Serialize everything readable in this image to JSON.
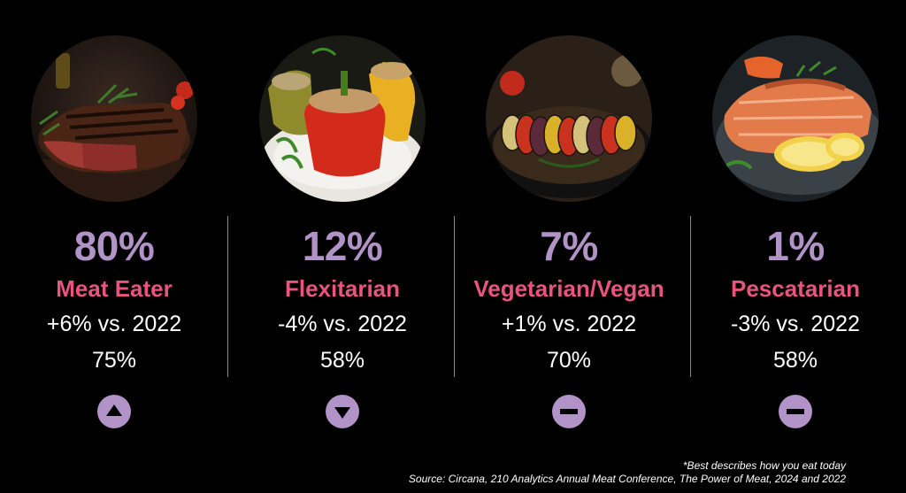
{
  "colors": {
    "background": "#000000",
    "percent": "#b293c8",
    "label": "#e8547e",
    "text": "#ffffff",
    "trend_icon_bg": "#b293c8",
    "divider": "#8a8a8a"
  },
  "categories": [
    {
      "percent": "80%",
      "label": "Meat Eater",
      "change": "+6% vs. 2022",
      "previous": "75%",
      "trend": "up",
      "trend_icon": "triangle-up-icon",
      "image": "steak-photo"
    },
    {
      "percent": "12%",
      "label": "Flexitarian",
      "change": "-4% vs. 2022",
      "previous": "58%",
      "trend": "down",
      "trend_icon": "triangle-down-icon",
      "image": "stuffed-peppers-photo"
    },
    {
      "percent": "7%",
      "label": "Vegetarian/Vegan",
      "change": "+1% vs. 2022",
      "previous": "70%",
      "trend": "flat",
      "trend_icon": "minus-icon",
      "image": "ratatouille-photo"
    },
    {
      "percent": "1%",
      "label": "Pescatarian",
      "change": "-3% vs. 2022",
      "previous": "58%",
      "trend": "flat",
      "trend_icon": "minus-icon",
      "image": "salmon-photo"
    }
  ],
  "footnote": {
    "note": "*Best describes how you eat today",
    "source": "Source: Circana, 210 Analytics Annual Meat Conference, The Power of Meat, 2024 and 2022"
  }
}
